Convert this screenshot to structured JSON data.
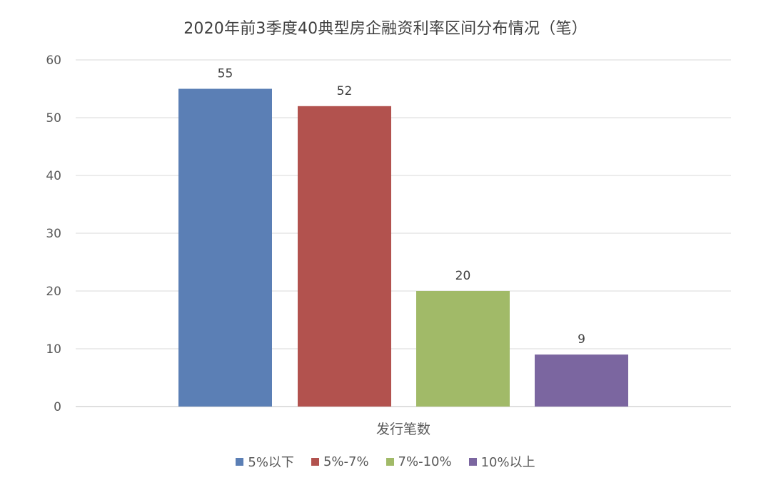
{
  "chart_data": {
    "type": "bar",
    "title": "2020年前3季度40典型房企融资利率区间分布情况（笔）",
    "xlabel": "发行笔数",
    "ylabel": "",
    "ylim": [
      0,
      60
    ],
    "yticks": [
      0,
      10,
      20,
      30,
      40,
      50,
      60
    ],
    "categories": [
      "发行笔数"
    ],
    "series": [
      {
        "name": "5%以下",
        "values": [
          55
        ],
        "color": "#5B7FB5"
      },
      {
        "name": "5%-7%",
        "values": [
          52
        ],
        "color": "#B2524E"
      },
      {
        "name": "7%-10%",
        "values": [
          20
        ],
        "color": "#A1BA68"
      },
      {
        "name": "10%以上",
        "values": [
          9
        ],
        "color": "#7B66A0"
      }
    ],
    "data_labels": true,
    "grid": true,
    "legend_position": "bottom"
  }
}
